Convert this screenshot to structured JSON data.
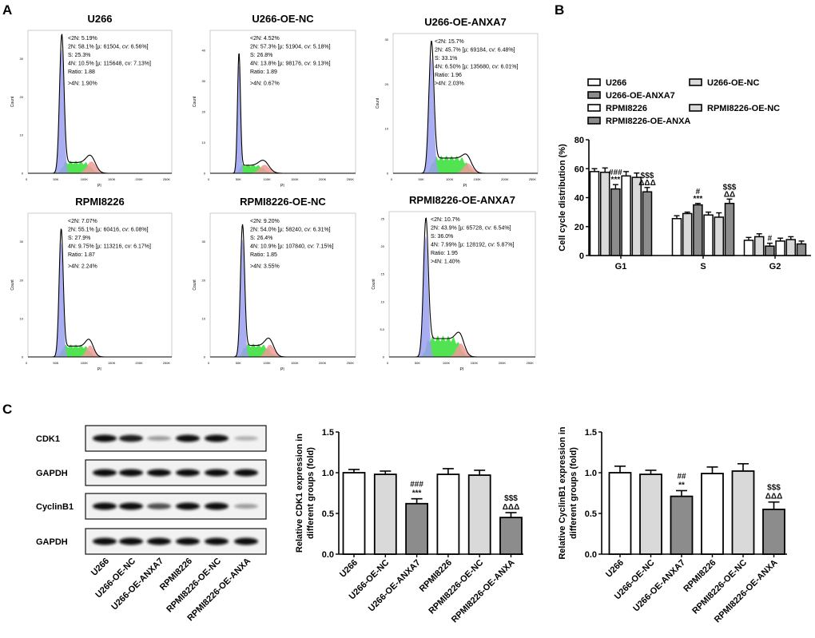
{
  "panel_labels": {
    "a": "A",
    "b": "B",
    "c": "C"
  },
  "chart_data": [
    {
      "type": "histogram",
      "panel": "A",
      "xlabel": "PI",
      "ylabel": "Count",
      "x_ticks": [
        "0",
        "50K",
        "100K",
        "150K",
        "200K",
        "250K"
      ],
      "xlim": [
        0,
        262000
      ],
      "colors": {
        "g1": "#9aa0f0",
        "s": "#3ee03e",
        "g2": "#f29a9a",
        "outline": "#000000"
      },
      "histograms": [
        {
          "title": "U266",
          "ylim": [
            0,
            37
          ],
          "y_ticks": [
            "0",
            "10",
            "20",
            "30"
          ],
          "y_tick_values": [
            0,
            10,
            20,
            30
          ],
          "peak_count": 35,
          "stats": {
            "sub2n": "<2N: 5.19%",
            "g1": "2N: 58.1%   [µ: 61504, cv: 6.56%]",
            "s": "S: 25.3%",
            "g2": "4N: 10.5%   [µ: 115648, cv: 7.13%]",
            "ratio": "Ratio: 1.88",
            "over4n": ">4N: 1.90%"
          },
          "model": {
            "g1_pct": 58.1,
            "g1_mu": 61504,
            "g1_cv": 6.56,
            "s_pct": 25.3,
            "g2_pct": 10.5,
            "g2_mu": 115648,
            "g2_cv": 7.13
          }
        },
        {
          "title": "U266-OE-NC",
          "ylim": [
            0,
            46
          ],
          "y_ticks": [
            "0",
            "10",
            "20",
            "30",
            "40"
          ],
          "y_tick_values": [
            0,
            10,
            20,
            30,
            40
          ],
          "peak_count": 38,
          "stats": {
            "sub2n": "<2N: 4.52%",
            "g1": "2N: 57.3%   [µ: 51904, cv: 5.18%]",
            "s": "S: 26.8%",
            "g2": "4N: 13.8%   [µ: 98176, cv: 9.13%]",
            "ratio": "Ratio: 1.89",
            "over4n": ">4N: 0.67%"
          },
          "model": {
            "g1_pct": 57.3,
            "g1_mu": 51904,
            "g1_cv": 5.18,
            "s_pct": 26.8,
            "g2_pct": 13.8,
            "g2_mu": 98176,
            "g2_cv": 9.13
          }
        },
        {
          "title": "U266-OE-ANXA7",
          "ylim": [
            0,
            31
          ],
          "y_ticks": [
            "0",
            "10",
            "20",
            "30"
          ],
          "y_tick_values": [
            0,
            10,
            20,
            30
          ],
          "peak_count": 28,
          "stats": {
            "sub2n": "<2N: 15.7%",
            "g1": "2N: 45.7%   [µ: 69184, cv: 6.48%]",
            "s": "S: 33.1%",
            "g2": "4N: 6.50%   [µ: 135680, cv: 6.01%]",
            "ratio": "Ratio: 1.96",
            "over4n": ">4N: 2.03%"
          },
          "model": {
            "g1_pct": 45.7,
            "g1_mu": 69184,
            "g1_cv": 6.48,
            "s_pct": 33.1,
            "g2_pct": 6.5,
            "g2_mu": 135680,
            "g2_cv": 6.01
          }
        },
        {
          "title": "RPMI8226",
          "ylim": [
            0,
            37
          ],
          "y_ticks": [
            "0",
            "10",
            "20",
            "30"
          ],
          "y_tick_values": [
            0,
            10,
            20,
            30
          ],
          "peak_count": 32,
          "stats": {
            "sub2n": "<2N: 7.07%",
            "g1": "2N: 55.1%   [µ: 60416, cv: 6.08%]",
            "s": "S: 27.9%",
            "g2": "4N: 9.75%   [µ: 113216, cv: 6.17%]",
            "ratio": "Ratio: 1.87",
            "over4n": ">4N: 2.24%"
          },
          "model": {
            "g1_pct": 55.1,
            "g1_mu": 60416,
            "g1_cv": 6.08,
            "s_pct": 27.9,
            "g2_pct": 9.75,
            "g2_mu": 113216,
            "g2_cv": 6.17
          }
        },
        {
          "title": "RPMI8226-OE-NC",
          "ylim": [
            0,
            37
          ],
          "y_ticks": [
            "0",
            "10",
            "20",
            "30"
          ],
          "y_tick_values": [
            0,
            10,
            20,
            30
          ],
          "peak_count": 33,
          "stats": {
            "sub2n": "<2N: 9.20%",
            "g1": "2N: 54.0%   [µ: 58240, cv: 6.31%]",
            "s": "S: 26.4%",
            "g2": "4N: 10.9%   [µ: 107840, cv: 7.15%]",
            "ratio": "Ratio: 1.85",
            "over4n": ">4N: 3.55%"
          },
          "model": {
            "g1_pct": 54.0,
            "g1_mu": 58240,
            "g1_cv": 6.31,
            "s_pct": 26.4,
            "g2_pct": 10.9,
            "g2_mu": 107840,
            "g2_cv": 7.15
          }
        },
        {
          "title": "RPMI8226-OE-ANXA7",
          "ylim": [
            0,
            26
          ],
          "y_ticks": [
            "0",
            "5.0",
            "10",
            "15",
            "20",
            "25"
          ],
          "y_tick_values": [
            0,
            5,
            10,
            15,
            20,
            25
          ],
          "peak_count": 23.5,
          "stats": {
            "sub2n": "<2N: 10.7%",
            "g1": "2N: 43.9%   [µ: 65728, cv: 6.54%]",
            "s": "S: 36.0%",
            "g2": "4N: 7.99%   [µ: 128192, cv: 5.87%]",
            "ratio": "Ratio: 1.95",
            "over4n": ">4N: 1.40%"
          },
          "model": {
            "g1_pct": 43.9,
            "g1_mu": 65728,
            "g1_cv": 6.54,
            "s_pct": 36.0,
            "g2_pct": 7.99,
            "g2_mu": 128192,
            "g2_cv": 5.87
          }
        }
      ]
    },
    {
      "type": "bar",
      "panel": "B",
      "ylabel": "Cell cycle distribution (%)",
      "ylim": [
        0,
        80
      ],
      "y_ticks": [
        "0",
        "20",
        "40",
        "60",
        "80"
      ],
      "categories": [
        "G1",
        "S",
        "G2"
      ],
      "legend_position": "top",
      "series": [
        {
          "name": "U266",
          "color": "#ffffff",
          "values": [
            58,
            25.5,
            10.5
          ],
          "errors": [
            2,
            2,
            2
          ],
          "sig": [
            "",
            "",
            ""
          ]
        },
        {
          "name": "U266-OE-NC",
          "color": "#d9d9d9",
          "values": [
            57.5,
            29,
            13
          ],
          "errors": [
            3,
            1,
            2
          ],
          "sig": [
            "",
            "",
            ""
          ]
        },
        {
          "name": "U266-OE-ANXA7",
          "color": "#8c8c8c",
          "values": [
            46,
            35,
            6.5
          ],
          "errors": [
            3,
            1,
            2
          ],
          "sig": [
            "###\n***",
            "#\n***",
            "#"
          ]
        },
        {
          "name": "RPMI8226",
          "color": "#ffffff",
          "values": [
            55,
            28,
            10
          ],
          "errors": [
            3,
            2,
            2
          ],
          "sig": [
            "",
            "",
            ""
          ]
        },
        {
          "name": "RPMI8226-OE-NC",
          "color": "#d9d9d9",
          "values": [
            54,
            26.5,
            11
          ],
          "errors": [
            3,
            3,
            2
          ],
          "sig": [
            "",
            "",
            ""
          ]
        },
        {
          "name": "RPMI8226-OE-ANXA",
          "color": "#8c8c8c",
          "values": [
            44,
            36,
            8
          ],
          "errors": [
            3,
            3,
            2
          ],
          "sig": [
            "$$$\nΔΔΔ",
            "$$$\nΔΔ",
            ""
          ]
        }
      ]
    },
    {
      "type": "bar",
      "panel": "C",
      "ylabel": [
        "Relative CDK1 expression in",
        "different groups (fold)"
      ],
      "ylim": [
        0,
        1.5
      ],
      "y_ticks": [
        "0.0",
        "0.5",
        "1.0",
        "1.5"
      ],
      "categories": [
        "U266",
        "U266-OE-NC",
        "U266-OE-ANXA7",
        "RPMI8226",
        "RPMI8226-OE-NC",
        "RPMI8226-OE-ANXA"
      ],
      "colors": [
        "#ffffff",
        "#d9d9d9",
        "#8c8c8c",
        "#ffffff",
        "#d9d9d9",
        "#8c8c8c"
      ],
      "values": [
        1.0,
        0.98,
        0.62,
        0.98,
        0.97,
        0.45
      ],
      "errors": [
        0.04,
        0.04,
        0.06,
        0.07,
        0.06,
        0.06
      ],
      "sig": [
        "",
        "",
        "###\n***",
        "",
        "",
        "$$$\nΔΔΔ"
      ]
    },
    {
      "type": "bar",
      "panel": "C",
      "ylabel": [
        "Relative CyclinB1 expression in",
        "different groups (fold)"
      ],
      "ylim": [
        0,
        1.5
      ],
      "y_ticks": [
        "0.0",
        "0.5",
        "1.0",
        "1.5"
      ],
      "categories": [
        "U266",
        "U266-OE-NC",
        "U266-OE-ANXA7",
        "RPMI8226",
        "RPMI8226-OE-NC",
        "RPMI8226-OE-ANXA"
      ],
      "colors": [
        "#ffffff",
        "#d9d9d9",
        "#8c8c8c",
        "#ffffff",
        "#d9d9d9",
        "#8c8c8c"
      ],
      "values": [
        1.0,
        0.98,
        0.71,
        0.99,
        1.02,
        0.55
      ],
      "errors": [
        0.08,
        0.05,
        0.07,
        0.08,
        0.09,
        0.09
      ],
      "sig": [
        "",
        "",
        "##\n**",
        "",
        "",
        "$$$\nΔΔΔ"
      ]
    }
  ],
  "western_blot": {
    "lanes": [
      "U266",
      "U266-OE-NC",
      "U266-OE-ANXA7",
      "RPMI8226",
      "RPMI8226-OE-NC",
      "RPMI8226-OE-ANXA"
    ],
    "rows": [
      {
        "label": "CDK1",
        "intensity": [
          1,
          0.95,
          0.35,
          1,
          1,
          0.25
        ]
      },
      {
        "label": "GAPDH",
        "intensity": [
          1,
          1,
          1,
          1,
          1,
          1
        ]
      },
      {
        "label": "CyclinB1",
        "intensity": [
          1,
          1,
          0.7,
          1,
          1,
          0.35
        ]
      },
      {
        "label": "GAPDH",
        "intensity": [
          1,
          1,
          1,
          1,
          1,
          1
        ]
      }
    ]
  }
}
